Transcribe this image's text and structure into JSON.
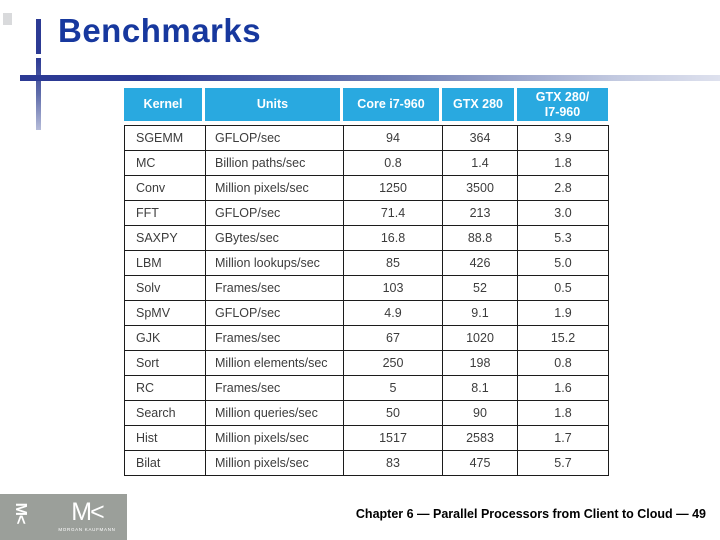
{
  "slide": {
    "title": "Benchmarks",
    "footer": "Chapter 6 — Parallel Processors from Client to Cloud — 49"
  },
  "table": {
    "columns": [
      "Kernel",
      "Units",
      "Core i7-960",
      "GTX 280",
      "GTX 280/\nI7-960"
    ],
    "rows": [
      [
        "SGEMM",
        "GFLOP/sec",
        "94",
        "364",
        "3.9"
      ],
      [
        "MC",
        "Billion paths/sec",
        "0.8",
        "1.4",
        "1.8"
      ],
      [
        "Conv",
        "Million pixels/sec",
        "1250",
        "3500",
        "2.8"
      ],
      [
        "FFT",
        "GFLOP/sec",
        "71.4",
        "213",
        "3.0"
      ],
      [
        "SAXPY",
        "GBytes/sec",
        "16.8",
        "88.8",
        "5.3"
      ],
      [
        "LBM",
        "Million lookups/sec",
        "85",
        "426",
        "5.0"
      ],
      [
        "Solv",
        "Frames/sec",
        "103",
        "52",
        "0.5"
      ],
      [
        "SpMV",
        "GFLOP/sec",
        "4.9",
        "9.1",
        "1.9"
      ],
      [
        "GJK",
        "Frames/sec",
        "67",
        "1020",
        "15.2"
      ],
      [
        "Sort",
        "Million elements/sec",
        "250",
        "198",
        "0.8"
      ],
      [
        "RC",
        "Frames/sec",
        "5",
        "8.1",
        "1.6"
      ],
      [
        "Search",
        "Million queries/sec",
        "50",
        "90",
        "1.8"
      ],
      [
        "Hist",
        "Million pixels/sec",
        "1517",
        "2583",
        "1.7"
      ],
      [
        "Bilat",
        "Million pixels/sec",
        "83",
        "475",
        "5.7"
      ]
    ]
  },
  "logo": {
    "mark": "M<",
    "name": "MORGAN KAUFMANN"
  },
  "colors": {
    "title_navy": "#17389e",
    "accent_navy": "#2c3a94",
    "table_header_cyan": "#29a9e0",
    "logo_gray": "#9b9f9a",
    "body_text": "#3c3c3c"
  }
}
